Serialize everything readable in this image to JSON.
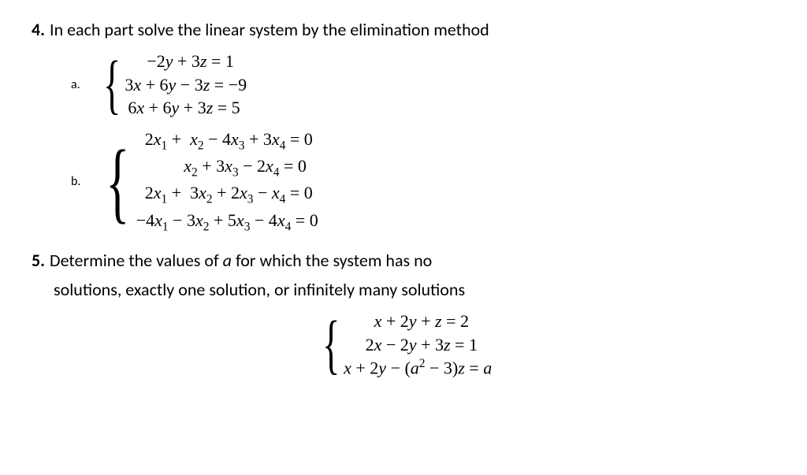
{
  "problem4": {
    "number": "4.",
    "text": "In each part solve the linear system by the elimination method",
    "partA": {
      "label": "a.",
      "eq1_html": "&minus;2<span class='italic-var'>y</span> + 3<span class='italic-var'>z</span> = 1",
      "eq2_html": "3<span class='italic-var'>x</span> + 6<span class='italic-var'>y</span> &minus; 3<span class='italic-var'>z</span> = &minus;9",
      "eq3_html": "6<span class='italic-var'>x</span> + 6<span class='italic-var'>y</span> + 3<span class='italic-var'>z</span> = 5"
    },
    "partB": {
      "label": "b.",
      "eq1_html": "&nbsp;&nbsp;2<span class='italic-var'>x</span><span class='sub'>1</span> + &nbsp;<span class='italic-var'>x</span><span class='sub'>2</span> &minus; 4<span class='italic-var'>x</span><span class='sub'>3</span> + 3<span class='italic-var'>x</span><span class='sub'>4</span> = 0",
      "eq2_html": "&nbsp;&nbsp;&nbsp;&nbsp;&nbsp;&nbsp;&nbsp;&nbsp;&nbsp;&nbsp;&nbsp;<span class='italic-var'>x</span><span class='sub'>2</span> + 3<span class='italic-var'>x</span><span class='sub'>3</span> &minus; 2<span class='italic-var'>x</span><span class='sub'>4</span> = 0",
      "eq3_html": "&nbsp;&nbsp;2<span class='italic-var'>x</span><span class='sub'>1</span> + &nbsp;3<span class='italic-var'>x</span><span class='sub'>2</span> + 2<span class='italic-var'>x</span><span class='sub'>3</span> &minus; <span class='italic-var'>x</span><span class='sub'>4</span> = 0",
      "eq4_html": "&minus;4<span class='italic-var'>x</span><span class='sub'>1</span> &minus; 3<span class='italic-var'>x</span><span class='sub'>2</span> + 5<span class='italic-var'>x</span><span class='sub'>3</span> &minus; 4<span class='italic-var'>x</span><span class='sub'>4</span> = 0"
    }
  },
  "problem5": {
    "number": "5.",
    "text_line1": "Determine the values of <span class='italic-var'>a</span> for which the system has no",
    "text_line2": "solutions, exactly one solution, or infinitely many solutions",
    "system": {
      "eq1_html": "&nbsp;&nbsp;&nbsp;&nbsp;&nbsp;&nbsp;&nbsp;<span class='italic-var'>x</span> + 2<span class='italic-var'>y</span> + <span class='italic-var'>z</span> = 2",
      "eq2_html": "&nbsp;&nbsp;&nbsp;&nbsp;&nbsp;2<span class='italic-var'>x</span> &minus; 2<span class='italic-var'>y</span> + 3<span class='italic-var'>z</span> = 1",
      "eq3_html": "<span class='italic-var'>x</span> + 2<span class='italic-var'>y</span> &minus; (<span class='italic-var'>a</span><span class='sup'>2</span> &minus; 3)<span class='italic-var'>z</span> = <span class='italic-var'>a</span>"
    }
  }
}
